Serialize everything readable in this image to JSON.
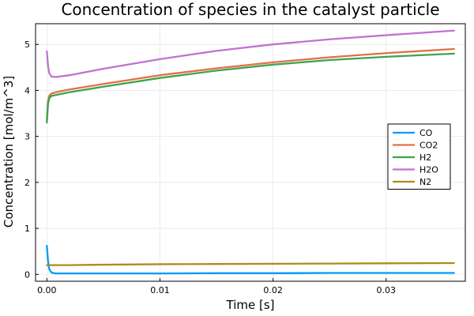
{
  "chart_data": {
    "type": "line",
    "title": "Concentration of species in the catalyst particle",
    "xlabel": "Time [s]",
    "ylabel": "Concentration [mol/m^3]",
    "xlim": [
      -0.001,
      0.037
    ],
    "ylim": [
      -0.15,
      5.45
    ],
    "xticks": [
      0.0,
      0.01,
      0.02,
      0.03
    ],
    "xtick_labels": [
      "0.00",
      "0.01",
      "0.02",
      "0.03"
    ],
    "yticks": [
      0,
      1,
      2,
      3,
      4,
      5
    ],
    "ytick_labels": [
      "0",
      "1",
      "2",
      "3",
      "4",
      "5"
    ],
    "grid": true,
    "legend_position": "right",
    "series": [
      {
        "name": "CO",
        "color": "#009af9",
        "x": [
          0.0,
          0.0001,
          0.0002,
          0.0004,
          0.0008,
          0.002,
          0.005,
          0.01,
          0.015,
          0.02,
          0.025,
          0.03,
          0.036
        ],
        "y": [
          0.62,
          0.3,
          0.12,
          0.04,
          0.02,
          0.02,
          0.02,
          0.02,
          0.025,
          0.025,
          0.03,
          0.03,
          0.03
        ]
      },
      {
        "name": "CO2",
        "color": "#e26f46",
        "x": [
          0.0,
          0.0001,
          0.0002,
          0.0004,
          0.0008,
          0.002,
          0.005,
          0.01,
          0.015,
          0.02,
          0.025,
          0.03,
          0.036
        ],
        "y": [
          3.35,
          3.75,
          3.88,
          3.93,
          3.96,
          4.02,
          4.14,
          4.33,
          4.48,
          4.61,
          4.72,
          4.81,
          4.9
        ]
      },
      {
        "name": "H2",
        "color": "#3da44d",
        "x": [
          0.0,
          0.0001,
          0.0002,
          0.0004,
          0.0008,
          0.002,
          0.005,
          0.01,
          0.015,
          0.02,
          0.025,
          0.03,
          0.036
        ],
        "y": [
          3.3,
          3.7,
          3.82,
          3.88,
          3.9,
          3.96,
          4.08,
          4.27,
          4.43,
          4.56,
          4.66,
          4.73,
          4.8
        ]
      },
      {
        "name": "H2O",
        "color": "#c271d2",
        "x": [
          0.0,
          0.0001,
          0.0002,
          0.0004,
          0.0008,
          0.002,
          0.005,
          0.01,
          0.015,
          0.02,
          0.025,
          0.03,
          0.036
        ],
        "y": [
          4.85,
          4.55,
          4.38,
          4.3,
          4.29,
          4.33,
          4.47,
          4.68,
          4.86,
          5.0,
          5.11,
          5.2,
          5.3
        ]
      },
      {
        "name": "N2",
        "color": "#ac8d18",
        "x": [
          0.0,
          0.002,
          0.005,
          0.01,
          0.015,
          0.02,
          0.025,
          0.03,
          0.036
        ],
        "y": [
          0.2,
          0.2,
          0.21,
          0.22,
          0.225,
          0.23,
          0.235,
          0.24,
          0.245
        ]
      }
    ]
  }
}
